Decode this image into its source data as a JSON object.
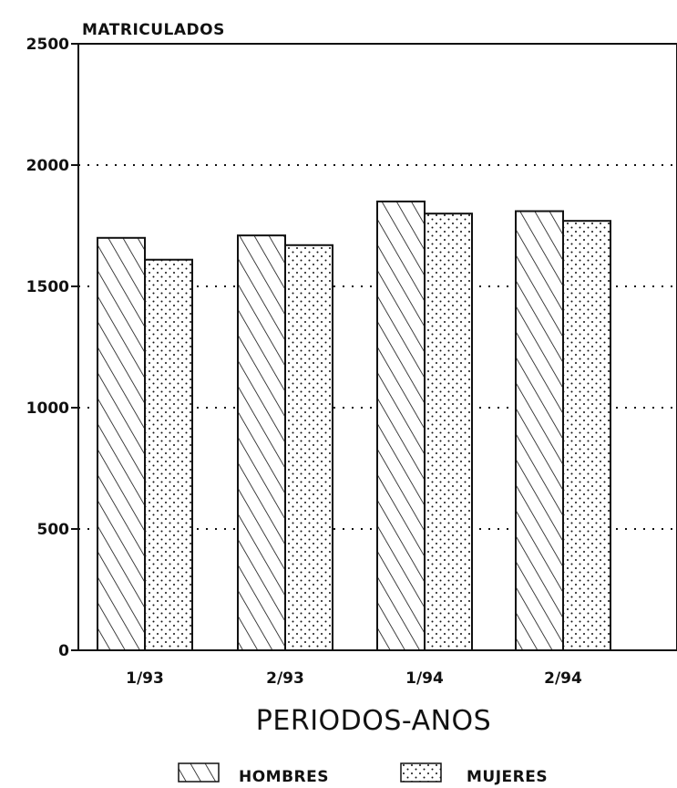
{
  "chart_data": {
    "type": "bar",
    "title": "",
    "ylabel": "MATRICULADOS",
    "xlabel": "PERIODOS-ANOS",
    "categories": [
      "1/93",
      "2/93",
      "1/94",
      "2/94"
    ],
    "series": [
      {
        "name": "HOMBRES",
        "values": [
          1700,
          1710,
          1850,
          1810
        ],
        "pattern": "diagonal-hatch"
      },
      {
        "name": "MUJERES",
        "values": [
          1610,
          1670,
          1800,
          1770
        ],
        "pattern": "dots"
      }
    ],
    "ylim": [
      0,
      2500
    ],
    "yticks": [
      0,
      500,
      1000,
      1500,
      2000,
      2500
    ],
    "grid": "dotted-horizontal",
    "legend_position": "bottom"
  }
}
